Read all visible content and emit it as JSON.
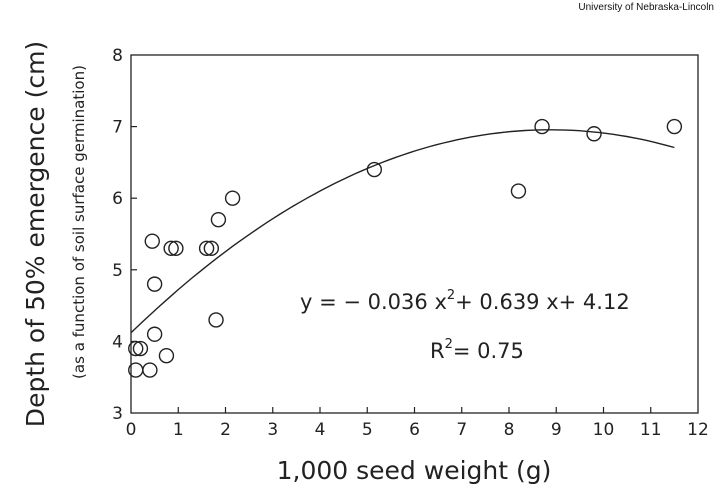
{
  "credit": "University of Nebraska-Lincoln",
  "chart_data": {
    "type": "scatter",
    "title": "",
    "xlabel": "1,000 seed weight (g)",
    "ylabel": "Depth of 50% emergence (cm)",
    "ylabel_sub": "(as a function of soil surface germination)",
    "xlim": [
      0,
      12
    ],
    "ylim": [
      3,
      8
    ],
    "xticks": [
      "0",
      "1",
      "2",
      "3",
      "4",
      "5",
      "6",
      "7",
      "8",
      "9",
      "10",
      "11",
      "12"
    ],
    "yticks": [
      "3",
      "4",
      "5",
      "6",
      "7",
      "8"
    ],
    "grid": false,
    "points": [
      {
        "x": 0.1,
        "y": 3.6
      },
      {
        "x": 0.1,
        "y": 3.9
      },
      {
        "x": 0.2,
        "y": 3.9
      },
      {
        "x": 0.4,
        "y": 3.6
      },
      {
        "x": 0.45,
        "y": 5.4
      },
      {
        "x": 0.5,
        "y": 4.8
      },
      {
        "x": 0.5,
        "y": 4.1
      },
      {
        "x": 0.75,
        "y": 3.8
      },
      {
        "x": 0.85,
        "y": 5.3
      },
      {
        "x": 0.95,
        "y": 5.3
      },
      {
        "x": 1.6,
        "y": 5.3
      },
      {
        "x": 1.7,
        "y": 5.3
      },
      {
        "x": 1.8,
        "y": 4.3
      },
      {
        "x": 1.85,
        "y": 5.7
      },
      {
        "x": 2.15,
        "y": 6.0
      },
      {
        "x": 5.15,
        "y": 6.4
      },
      {
        "x": 8.2,
        "y": 6.1
      },
      {
        "x": 8.7,
        "y": 7.0
      },
      {
        "x": 9.8,
        "y": 6.9
      },
      {
        "x": 11.5,
        "y": 7.0
      }
    ],
    "fit": {
      "a": -0.036,
      "b": 0.639,
      "c": 4.12,
      "x_range": [
        0,
        11.5
      ],
      "equation": {
        "lhs": "y = − 0.036 x",
        "sup": "2",
        "rhs": "+ 0.639 x+ 4.12"
      },
      "r2": {
        "lhs": "R",
        "sup": "2",
        "rhs": "= 0.75"
      }
    }
  }
}
